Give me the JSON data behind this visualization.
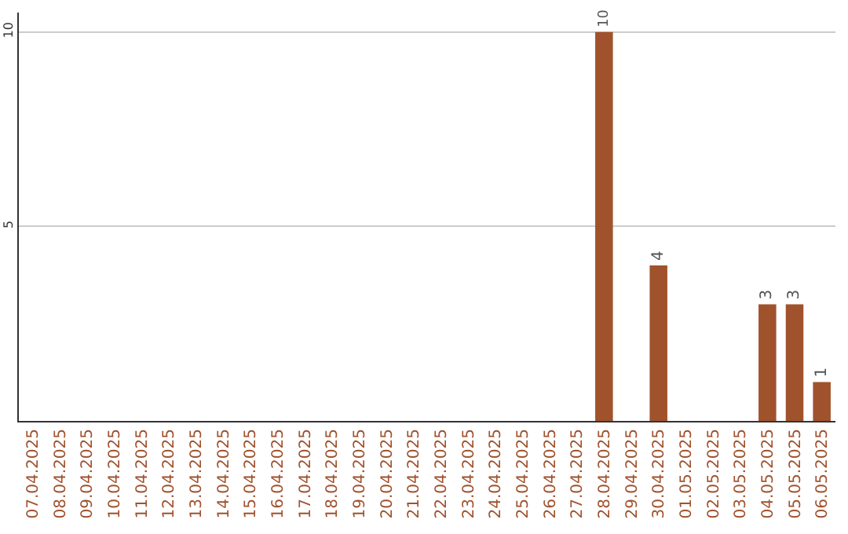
{
  "chart_data": {
    "type": "bar",
    "categories": [
      "07.04.2025",
      "08.04.2025",
      "09.04.2025",
      "10.04.2025",
      "11.04.2025",
      "12.04.2025",
      "13.04.2025",
      "14.04.2025",
      "15.04.2025",
      "16.04.2025",
      "17.04.2025",
      "18.04.2025",
      "19.04.2025",
      "20.04.2025",
      "21.04.2025",
      "22.04.2025",
      "23.04.2025",
      "24.04.2025",
      "25.04.2025",
      "26.04.2025",
      "27.04.2025",
      "28.04.2025",
      "29.04.2025",
      "30.04.2025",
      "01.05.2025",
      "02.05.2025",
      "03.05.2025",
      "04.05.2025",
      "05.05.2025",
      "06.05.2025"
    ],
    "values": [
      0,
      0,
      0,
      0,
      0,
      0,
      0,
      0,
      0,
      0,
      0,
      0,
      0,
      0,
      0,
      0,
      0,
      0,
      0,
      0,
      0,
      10,
      0,
      4,
      0,
      0,
      0,
      3,
      3,
      1
    ],
    "value_labels": [
      null,
      null,
      null,
      null,
      null,
      null,
      null,
      null,
      null,
      null,
      null,
      null,
      null,
      null,
      null,
      null,
      null,
      null,
      null,
      null,
      null,
      "10",
      null,
      "4",
      null,
      null,
      null,
      "3",
      "3",
      "1"
    ],
    "color": "#a0522d",
    "ylim": [
      0,
      10.5
    ],
    "yticks": [
      5,
      10
    ],
    "grid": "y"
  }
}
